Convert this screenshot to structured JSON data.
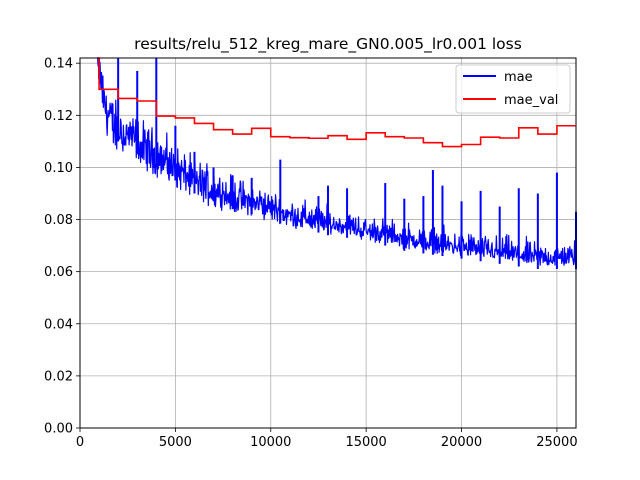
{
  "chart_data": {
    "type": "line",
    "title": "results/relu_512_kreg_mare_GN0.005_lr0.001 loss",
    "xlabel": "",
    "ylabel": "",
    "xlim": [
      0,
      26000
    ],
    "ylim": [
      0,
      0.142
    ],
    "xticks": [
      "0",
      "5000",
      "10000",
      "15000",
      "20000",
      "25000"
    ],
    "yticks": [
      "0.00",
      "0.02",
      "0.04",
      "0.06",
      "0.08",
      "0.10",
      "0.12",
      "0.14"
    ],
    "grid": true,
    "legend_position": "top-right",
    "series": [
      {
        "name": "mae",
        "color": "#0000ff",
        "x": [
          900,
          1000,
          1200,
          1500,
          2000,
          2500,
          3000,
          3500,
          4000,
          5000,
          6000,
          7000,
          8000,
          9000,
          10000,
          11000,
          12000,
          13000,
          14000,
          15000,
          16000,
          17000,
          18000,
          19000,
          20000,
          21000,
          22000,
          23000,
          24000,
          25000,
          26000
        ],
        "y": [
          0.142,
          0.138,
          0.126,
          0.119,
          0.114,
          0.111,
          0.109,
          0.106,
          0.104,
          0.099,
          0.094,
          0.091,
          0.088,
          0.086,
          0.084,
          0.081,
          0.08,
          0.078,
          0.077,
          0.075,
          0.074,
          0.072,
          0.071,
          0.07,
          0.069,
          0.068,
          0.067,
          0.066,
          0.065,
          0.065,
          0.065
        ],
        "spikes": [
          [
            1000,
            0.142
          ],
          [
            2000,
            0.142
          ],
          [
            3000,
            0.137
          ],
          [
            4000,
            0.142
          ],
          [
            5000,
            0.116
          ],
          [
            6000,
            0.106
          ],
          [
            7000,
            0.1
          ],
          [
            8000,
            0.097
          ],
          [
            9000,
            0.096
          ],
          [
            10500,
            0.103
          ],
          [
            12500,
            0.089
          ],
          [
            13000,
            0.093
          ],
          [
            14000,
            0.092
          ],
          [
            16000,
            0.094
          ],
          [
            17000,
            0.088
          ],
          [
            18000,
            0.089
          ],
          [
            18500,
            0.099
          ],
          [
            19000,
            0.093
          ],
          [
            20000,
            0.087
          ],
          [
            21000,
            0.091
          ],
          [
            22000,
            0.085
          ],
          [
            23000,
            0.092
          ],
          [
            24000,
            0.09
          ],
          [
            25000,
            0.098
          ],
          [
            26000,
            0.083
          ]
        ]
      },
      {
        "name": "mae_val",
        "color": "#ff0000",
        "step": true,
        "x": [
          900,
          1000,
          2000,
          3000,
          4000,
          5000,
          6000,
          7000,
          8000,
          9000,
          10000,
          11000,
          12000,
          13000,
          14000,
          15000,
          16000,
          17000,
          18000,
          19000,
          20000,
          21000,
          22000,
          23000,
          24000,
          25000,
          26000
        ],
        "y": [
          0.142,
          0.13,
          0.1265,
          0.1255,
          0.1197,
          0.119,
          0.1169,
          0.1145,
          0.1128,
          0.115,
          0.1118,
          0.1114,
          0.1112,
          0.1122,
          0.1108,
          0.1133,
          0.1118,
          0.1113,
          0.1095,
          0.108,
          0.1088,
          0.1116,
          0.1113,
          0.1152,
          0.1128,
          0.116,
          0.116
        ]
      }
    ]
  }
}
